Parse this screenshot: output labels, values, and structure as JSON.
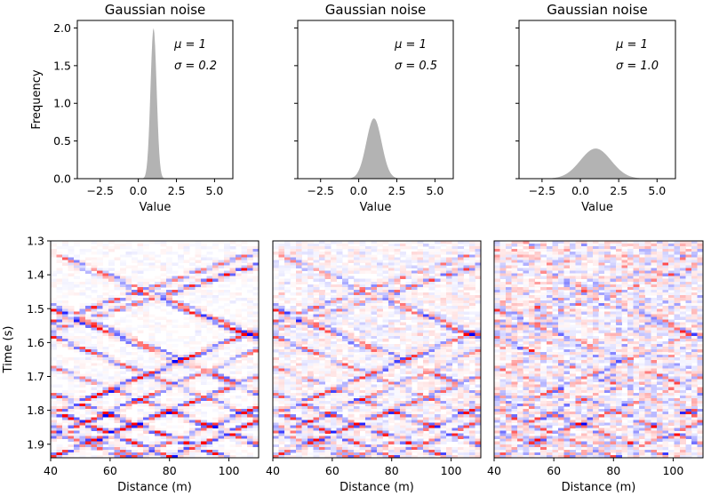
{
  "chart_data": [
    {
      "type": "area",
      "title": "Gaussian noise",
      "xlabel": "Value",
      "ylabel": "Frequency",
      "xlim": [
        -4,
        6.2
      ],
      "ylim": [
        0,
        2.1
      ],
      "xticks": [
        -2.5,
        0.0,
        2.5,
        5.0
      ],
      "xtick_labels": [
        "−2.5",
        "0.0",
        "2.5",
        "5.0"
      ],
      "yticks": [
        0.0,
        0.5,
        1.0,
        1.5,
        2.0
      ],
      "ytick_labels": [
        "0.0",
        "0.5",
        "1.0",
        "1.5",
        "2.0"
      ],
      "mu": 1,
      "sigma": 0.2,
      "peak": 2.0,
      "annotation_mu": "μ = 1",
      "annotation_sigma": "σ = 0.2",
      "fill_color": "#b3b3b3"
    },
    {
      "type": "area",
      "title": "Gaussian noise",
      "xlabel": "Value",
      "ylabel": "",
      "xlim": [
        -4,
        6.2
      ],
      "ylim": [
        0,
        2.1
      ],
      "xticks": [
        -2.5,
        0.0,
        2.5,
        5.0
      ],
      "xtick_labels": [
        "−2.5",
        "0.0",
        "2.5",
        "5.0"
      ],
      "mu": 1,
      "sigma": 0.5,
      "peak": 0.8,
      "annotation_mu": "μ = 1",
      "annotation_sigma": "σ = 0.5",
      "fill_color": "#b3b3b3"
    },
    {
      "type": "area",
      "title": "Gaussian noise",
      "xlabel": "Value",
      "ylabel": "",
      "xlim": [
        -4,
        6.2
      ],
      "ylim": [
        0,
        2.1
      ],
      "xticks": [
        -2.5,
        0.0,
        2.5,
        5.0
      ],
      "xtick_labels": [
        "−2.5",
        "0.0",
        "2.5",
        "5.0"
      ],
      "mu": 1,
      "sigma": 1.0,
      "peak": 0.4,
      "annotation_mu": "μ = 1",
      "annotation_sigma": "σ = 1.0",
      "fill_color": "#b3b3b3"
    },
    {
      "type": "heatmap",
      "xlabel": "Distance (m)",
      "ylabel": "Time (s)",
      "xlim": [
        40,
        110
      ],
      "ylim": [
        1.3,
        1.94
      ],
      "y_inverted": true,
      "xticks": [
        40,
        60,
        80,
        100
      ],
      "yticks": [
        1.3,
        1.4,
        1.5,
        1.6,
        1.7,
        1.8,
        1.9
      ],
      "ytick_labels": [
        "1.3",
        "1.4",
        "1.5",
        "1.6",
        "1.7",
        "1.8",
        "1.9"
      ],
      "colormap": "bwr",
      "noise_sigma": 0.2
    },
    {
      "type": "heatmap",
      "xlabel": "Distance (m)",
      "ylabel": "",
      "xlim": [
        40,
        110
      ],
      "ylim": [
        1.3,
        1.94
      ],
      "y_inverted": true,
      "xticks": [
        40,
        60,
        80,
        100
      ],
      "colormap": "bwr",
      "noise_sigma": 0.5
    },
    {
      "type": "heatmap",
      "xlabel": "Distance (m)",
      "ylabel": "",
      "xlim": [
        40,
        110
      ],
      "ylim": [
        1.3,
        1.94
      ],
      "y_inverted": true,
      "xticks": [
        40,
        60,
        80,
        100
      ],
      "colormap": "bwr",
      "noise_sigma": 1.0
    }
  ],
  "colors": {
    "positive": "#ff0000",
    "negative": "#0000ff",
    "zero": "#ffffff"
  }
}
